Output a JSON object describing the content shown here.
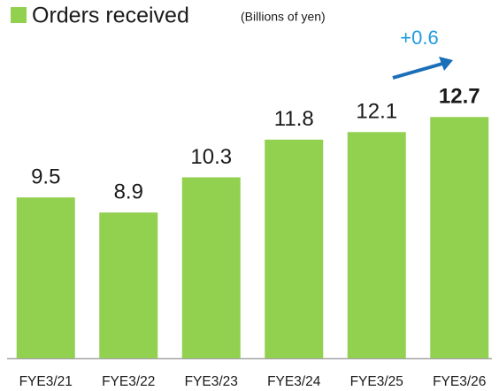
{
  "chart_data": {
    "type": "bar",
    "legend": "Orders received",
    "unit": "(Billions of yen)",
    "annotation": "+0.6",
    "categories": [
      "FYE3/21",
      "FYE3/22",
      "FYE3/23",
      "FYE3/24",
      "FYE3/25",
      "FYE3/26"
    ],
    "values": [
      9.5,
      8.9,
      10.3,
      11.8,
      12.1,
      12.7
    ],
    "color": "#92d050",
    "ylim": [
      3.1,
      16.3
    ]
  }
}
